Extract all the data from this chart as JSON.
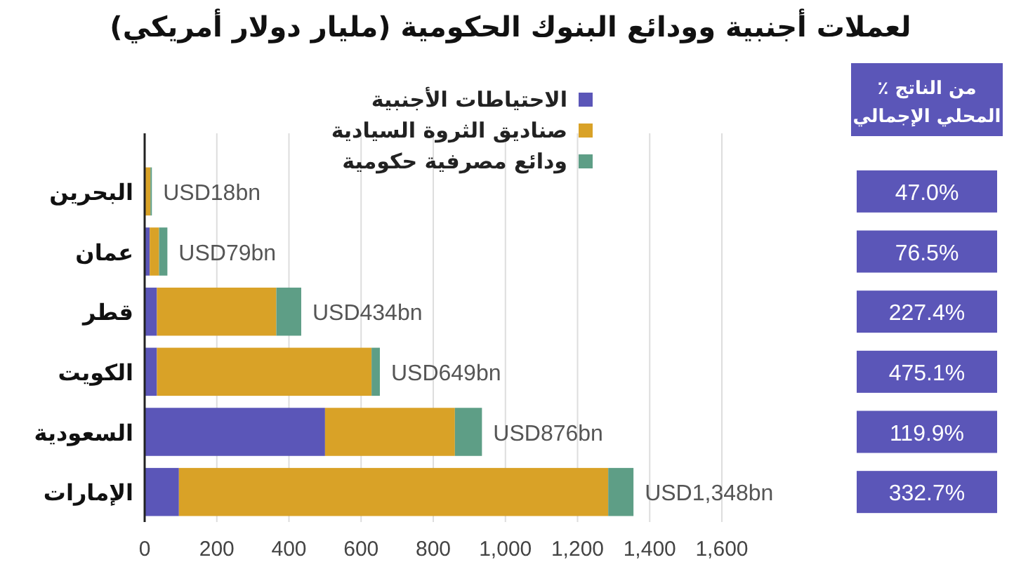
{
  "chart_data": {
    "type": "bar",
    "orientation": "horizontal",
    "stacked": true,
    "title": "لعملات أجنبية وودائع البنوك الحكومية (مليار دولار أمريكي)",
    "categories": [
      "البحرين",
      "عمان",
      "قطر",
      "الكويت",
      "السعودية",
      "الإمارات"
    ],
    "series": [
      {
        "name": "الاحتياطات الأجنبية",
        "color": "#5b56b8",
        "values": [
          2,
          14,
          34,
          34,
          500,
          95
        ]
      },
      {
        "name": "صناديق الثروة السيادية",
        "color": "#d9a227",
        "values": [
          14,
          26,
          331,
          595,
          360,
          1190
        ]
      },
      {
        "name": "ودائع مصرفية حكومية",
        "color": "#5e9e86",
        "values": [
          4,
          23,
          69,
          23,
          75,
          70
        ]
      }
    ],
    "totals": [
      "USD18bn",
      "USD79bn",
      "USD434bn",
      "USD649bn",
      "USD876bn",
      "USD1,348bn"
    ],
    "annotations": [
      "٪ من الناتج المحلي الإجمالي",
      "47.0%",
      "76.5%",
      "227.4%",
      "475.1%",
      "119.9%",
      "332.7%"
    ],
    "xlim": [
      0,
      1600
    ],
    "xticks": [
      {
        "value": 0,
        "label": "0"
      },
      {
        "value": 200,
        "label": "200"
      },
      {
        "value": 400,
        "label": "400"
      },
      {
        "value": 600,
        "label": "600"
      },
      {
        "value": 800,
        "label": "800"
      },
      {
        "value": 1000,
        "label": "1,000"
      },
      {
        "value": 1200,
        "label": "1,200"
      },
      {
        "value": 1400,
        "label": "1,400"
      },
      {
        "value": 1600,
        "label": "1,600"
      }
    ],
    "grid": "x",
    "legend": "top"
  }
}
